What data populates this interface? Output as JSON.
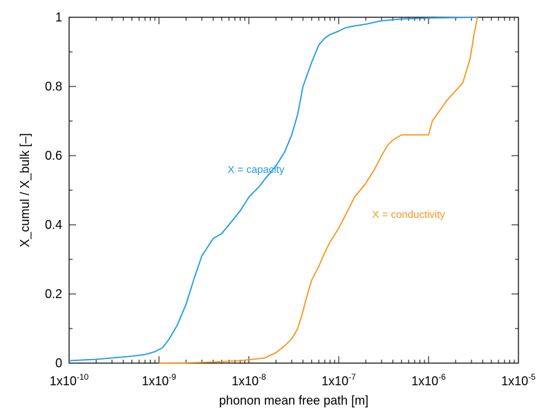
{
  "chart_data": {
    "type": "line",
    "xlabel": "phonon mean free path [m]",
    "ylabel": "X_cumul / X_bulk [–]",
    "x_scale": "log",
    "xlim": [
      1e-10,
      1e-05
    ],
    "ylim": [
      0,
      1
    ],
    "x_ticks": [
      {
        "mant": "1x10",
        "exp": "-10"
      },
      {
        "mant": "1x10",
        "exp": "-9"
      },
      {
        "mant": "1x10",
        "exp": "-8"
      },
      {
        "mant": "1x10",
        "exp": "-7"
      },
      {
        "mant": "1x10",
        "exp": "-6"
      },
      {
        "mant": "1x10",
        "exp": "-5"
      }
    ],
    "y_ticks": [
      "0",
      "0.2",
      "0.4",
      "0.6",
      "0.8",
      "1"
    ],
    "grid": false,
    "legend": "none",
    "series": [
      {
        "name": "X = capacity",
        "color": "#1f9ae8",
        "x": [
          1e-10,
          2e-10,
          3e-10,
          5e-10,
          7e-10,
          9e-10,
          1.1e-09,
          1.3e-09,
          1.6e-09,
          2e-09,
          2.5e-09,
          3e-09,
          4e-09,
          5e-09,
          6e-09,
          8e-09,
          1e-08,
          1.3e-08,
          1.6e-08,
          2e-08,
          2.5e-08,
          3e-08,
          3.5e-08,
          4e-08,
          5e-08,
          6e-08,
          7e-08,
          8e-08,
          1e-07,
          1.2e-07,
          1.5e-07,
          2e-07,
          3e-07,
          5e-07,
          1e-06,
          2e-06,
          3.5e-06
        ],
        "y": [
          0.007,
          0.011,
          0.015,
          0.02,
          0.025,
          0.033,
          0.045,
          0.07,
          0.11,
          0.17,
          0.25,
          0.31,
          0.36,
          0.375,
          0.4,
          0.44,
          0.48,
          0.51,
          0.54,
          0.57,
          0.61,
          0.66,
          0.72,
          0.8,
          0.87,
          0.92,
          0.94,
          0.95,
          0.96,
          0.97,
          0.975,
          0.98,
          0.99,
          0.995,
          0.998,
          0.999,
          1.0
        ]
      },
      {
        "name": "X = conductivity",
        "color": "#f5961e",
        "x": [
          1e-09,
          2e-09,
          4e-09,
          8e-09,
          1.5e-08,
          2e-08,
          2.5e-08,
          3e-08,
          3.5e-08,
          4e-08,
          4.5e-08,
          5e-08,
          6e-08,
          7e-08,
          8e-08,
          1e-07,
          1.2e-07,
          1.5e-07,
          2e-07,
          2.5e-07,
          3e-07,
          3.5e-07,
          4e-07,
          5e-07,
          1e-06,
          1.1e-06,
          1.6e-06,
          2.4e-06,
          2.9e-06,
          3.2e-06,
          3.5e-06
        ],
        "y": [
          0.0,
          0.001,
          0.003,
          0.007,
          0.015,
          0.03,
          0.05,
          0.07,
          0.1,
          0.15,
          0.2,
          0.24,
          0.28,
          0.32,
          0.35,
          0.39,
          0.43,
          0.48,
          0.52,
          0.56,
          0.6,
          0.63,
          0.645,
          0.66,
          0.66,
          0.7,
          0.76,
          0.81,
          0.88,
          0.95,
          1.0
        ]
      }
    ],
    "annotations": [
      {
        "text": "X = capacity",
        "series": 0,
        "x": 1.2e-08,
        "y": 0.55
      },
      {
        "text": "X = conductivity",
        "series": 1,
        "x": 6e-07,
        "y": 0.42
      }
    ]
  }
}
